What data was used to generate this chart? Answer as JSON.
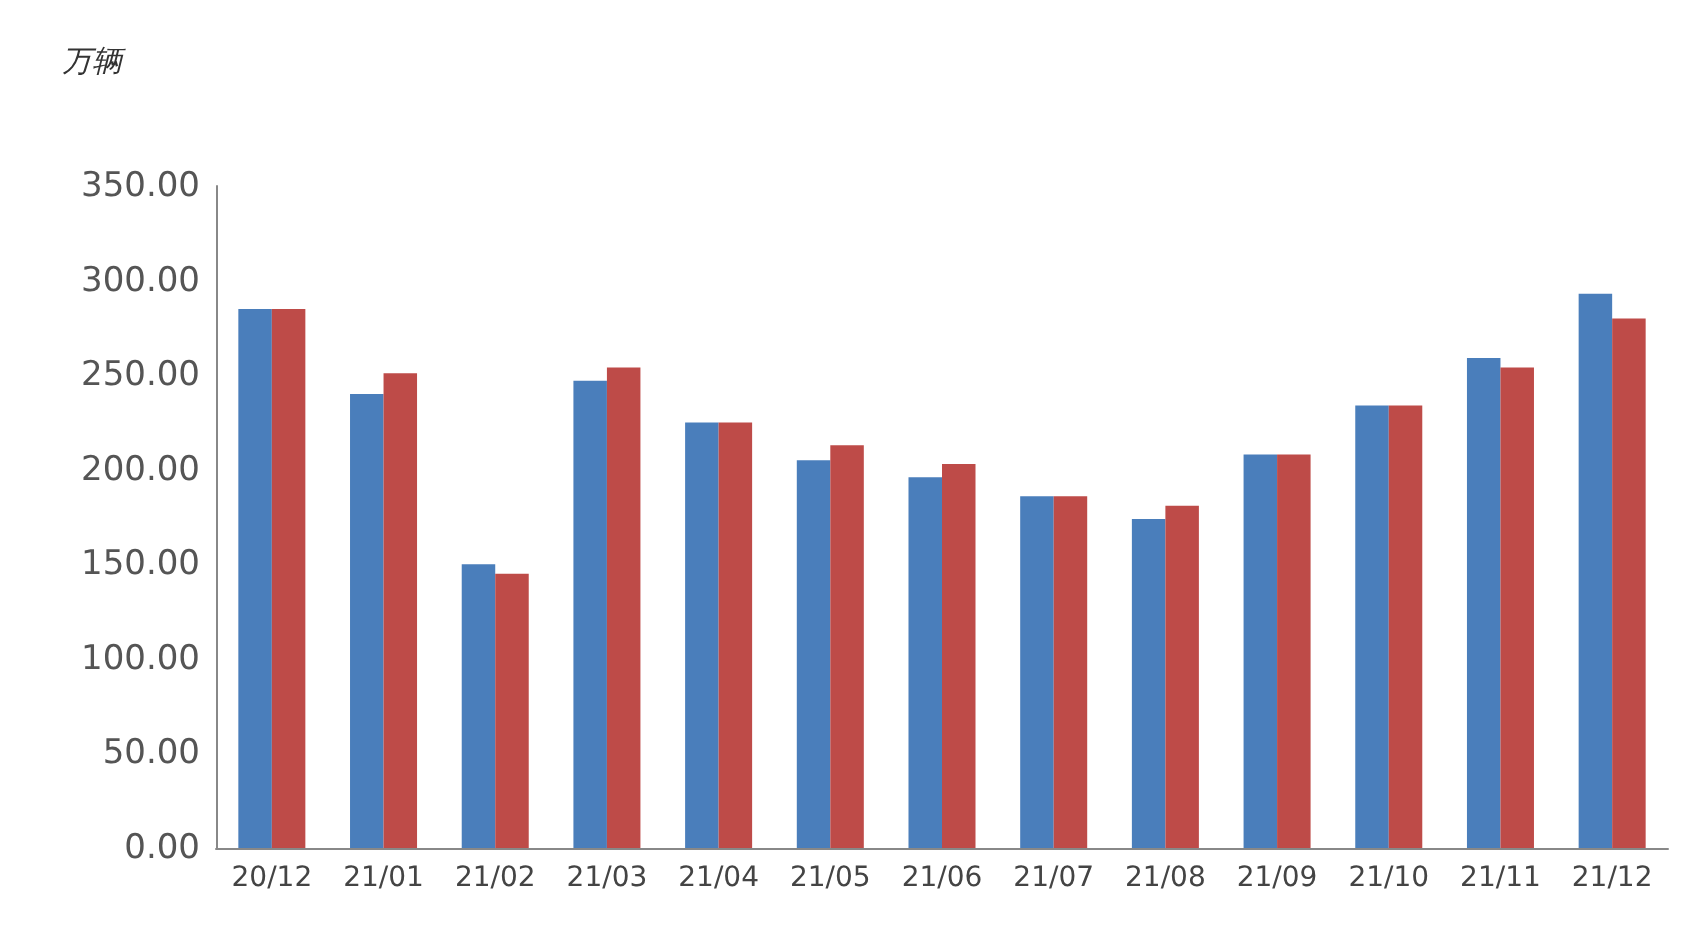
{
  "chart_data": {
    "type": "bar",
    "ylabel": "万辆",
    "categories": [
      "20/12",
      "21/01",
      "21/02",
      "21/03",
      "21/04",
      "21/05",
      "21/06",
      "21/07",
      "21/08",
      "21/09",
      "21/10",
      "21/11",
      "21/12"
    ],
    "series": [
      {
        "color": "#4a7ebb",
        "values": [
          285,
          240,
          150,
          247,
          225,
          205,
          196,
          186,
          174,
          208,
          234,
          259,
          293
        ]
      },
      {
        "color": "#be4b48",
        "values": [
          285,
          251,
          145,
          254,
          225,
          213,
          203,
          186,
          181,
          208,
          234,
          254,
          280
        ]
      }
    ],
    "ylim": [
      0,
      350
    ],
    "yticks": [
      {
        "value": 0,
        "label": "0.00"
      },
      {
        "value": 50,
        "label": "50.00"
      },
      {
        "value": 100,
        "label": "100.00"
      },
      {
        "value": 150,
        "label": "150.00"
      },
      {
        "value": 200,
        "label": "200.00"
      },
      {
        "value": 250,
        "label": "250.00"
      },
      {
        "value": 300,
        "label": "300.00"
      },
      {
        "value": 350,
        "label": "350.00"
      }
    ],
    "grid": false
  }
}
